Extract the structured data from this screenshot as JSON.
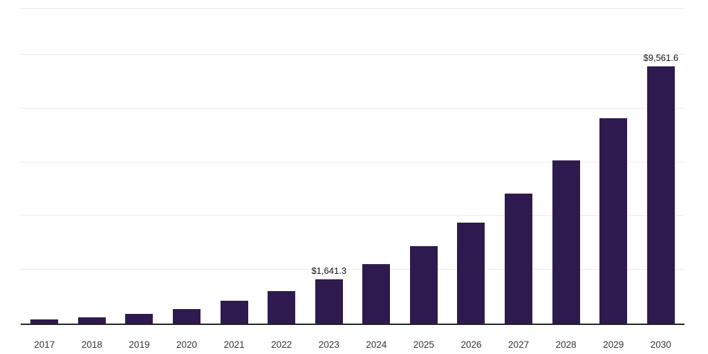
{
  "chart_data": {
    "type": "bar",
    "title": "",
    "xlabel": "",
    "ylabel": "",
    "categories": [
      "2017",
      "2018",
      "2019",
      "2020",
      "2021",
      "2022",
      "2023",
      "2024",
      "2025",
      "2026",
      "2027",
      "2028",
      "2029",
      "2030"
    ],
    "values": [
      160,
      230,
      350,
      550,
      840,
      1200,
      1641.3,
      2210,
      2890,
      3760,
      4830,
      6060,
      7630,
      9561.6
    ],
    "data_labels": [
      {
        "index": 6,
        "text": "$1,641.3"
      },
      {
        "index": 13,
        "text": "$9,561.6"
      }
    ],
    "bar_color": "#2e1a4e",
    "ylim": [
      0,
      11700
    ],
    "gridline_interval": 2000,
    "gridlines_max": 10000,
    "grid": "horizontal",
    "legend": "none",
    "currency_prefix": "$"
  }
}
